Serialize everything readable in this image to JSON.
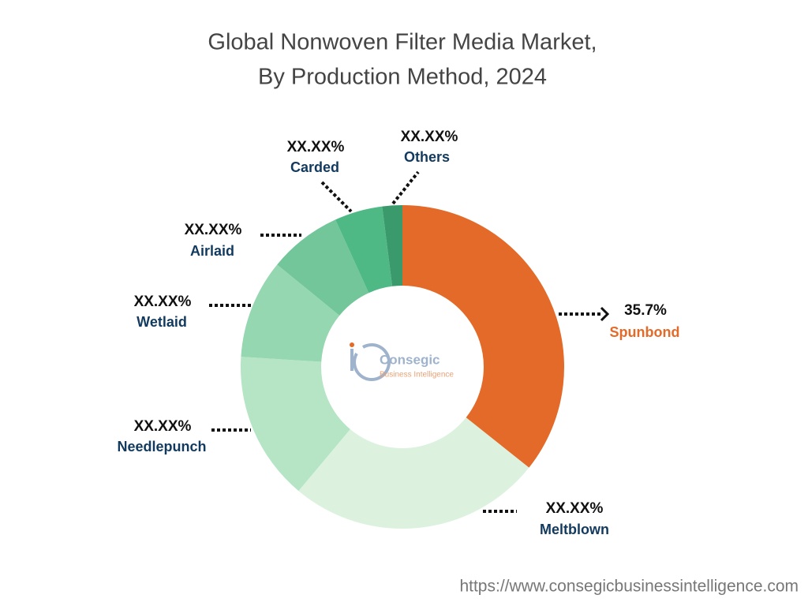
{
  "chart_data": {
    "type": "donut",
    "title": [
      "Global Nonwoven Filter Media Market,",
      "By Production Method, 2024"
    ],
    "categories": [
      "Spunbond",
      "Meltblown",
      "Needlepunch",
      "Wetlaid",
      "Airlaid",
      "Carded",
      "Others"
    ],
    "values": [
      35.7,
      25.4,
      14.9,
      9.9,
      7.3,
      4.8,
      2.0
    ],
    "value_labels": [
      "35.7%",
      "XX.XX%",
      "XX.XX%",
      "XX.XX%",
      "XX.XX%",
      "XX.XX%",
      "XX.XX%"
    ],
    "colors": [
      "#e36a28",
      "#dcf2de",
      "#b5e5c4",
      "#95d7b0",
      "#72c69a",
      "#4fb985",
      "#3a9a6b"
    ],
    "label_colors": [
      "#e36a28",
      "#123a5e",
      "#123a5e",
      "#123a5e",
      "#123a5e",
      "#123a5e",
      "#123a5e"
    ]
  },
  "logo": {
    "name": "Consegic",
    "tagline": "Business Intelligence"
  },
  "footer": "https://www.consegicbusinessintelligence.com"
}
